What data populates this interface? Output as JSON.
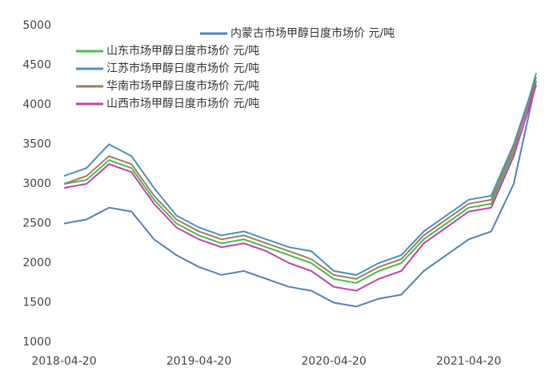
{
  "chart_data": {
    "type": "line",
    "categories": [
      "2018-04-20",
      null,
      null,
      null,
      null,
      null,
      "2019-04-20",
      null,
      null,
      null,
      null,
      null,
      "2020-04-20",
      null,
      null,
      null,
      null,
      null,
      "2021-04-20",
      null,
      null,
      null
    ],
    "series": [
      {
        "name": "内蒙古市场甲醇日度市场价 元/吨",
        "color": "#4f81bd",
        "values": [
          2500,
          2550,
          2700,
          2650,
          2300,
          2100,
          1950,
          1850,
          1900,
          1800,
          1700,
          1650,
          1500,
          1450,
          1550,
          1600,
          1900,
          2100,
          2300,
          2400,
          3000,
          4300
        ]
      },
      {
        "name": "山东市场甲醇日度市场价 元/吨",
        "color": "#4cb84c",
        "values": [
          3000,
          3050,
          3300,
          3200,
          2800,
          2500,
          2350,
          2250,
          2300,
          2200,
          2100,
          2000,
          1800,
          1750,
          1900,
          2000,
          2300,
          2500,
          2700,
          2750,
          3400,
          4400
        ]
      },
      {
        "name": "江苏市场甲醇日度市场价 元/吨",
        "color": "#4a8fc4",
        "values": [
          3100,
          3200,
          3500,
          3350,
          2950,
          2600,
          2450,
          2350,
          2400,
          2300,
          2200,
          2150,
          1900,
          1850,
          2000,
          2100,
          2400,
          2600,
          2800,
          2850,
          3500,
          4350
        ]
      },
      {
        "name": "华南市场甲醇日度市场价 元/吨",
        "color": "#9c7e5e",
        "values": [
          3000,
          3100,
          3350,
          3250,
          2850,
          2550,
          2400,
          2300,
          2350,
          2250,
          2150,
          2050,
          1850,
          1800,
          1950,
          2050,
          2350,
          2550,
          2750,
          2800,
          3450,
          4300
        ]
      },
      {
        "name": "山西市场甲醇日度市场价 元/吨",
        "color": "#c040b0",
        "values": [
          2950,
          3000,
          3250,
          3150,
          2750,
          2450,
          2300,
          2200,
          2250,
          2150,
          2000,
          1900,
          1700,
          1650,
          1800,
          1900,
          2250,
          2450,
          2650,
          2700,
          3350,
          4250
        ]
      }
    ],
    "ylim": [
      1000,
      5000
    ],
    "yticks": [
      1000,
      1500,
      2000,
      2500,
      3000,
      3500,
      4000,
      4500,
      5000
    ],
    "grid": false
  }
}
